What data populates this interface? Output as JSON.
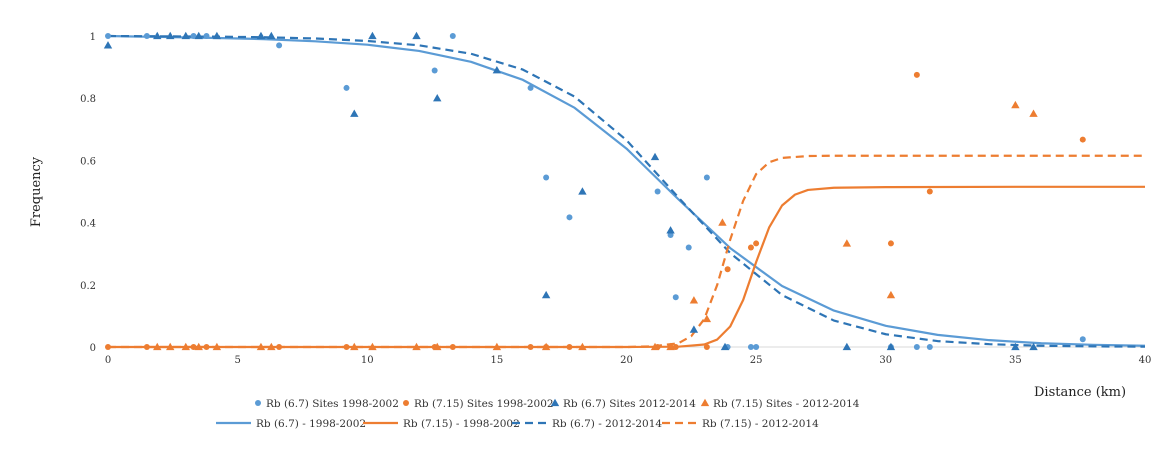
{
  "chart_data": {
    "type": "scatter",
    "xlabel": "Distance  (km)",
    "ylabel": "Frequency",
    "xlim": [
      0,
      40
    ],
    "ylim": [
      0,
      1
    ],
    "x_ticks": [
      0,
      5,
      10,
      15,
      20,
      25,
      30,
      35,
      40
    ],
    "y_ticks": [
      0,
      0.2,
      0.4,
      0.6,
      0.8,
      1
    ],
    "grid": false,
    "legend_position": "bottom",
    "colors": {
      "blue": "#5b9bd5",
      "blue_dark": "#2e75b6",
      "orange": "#ed7d31"
    },
    "series": [
      {
        "name": "Rb (6.7) Sites 1998-2002",
        "kind": "points",
        "marker": "circle",
        "color": "#5b9bd5",
        "x": [
          0,
          1.5,
          3.3,
          3.8,
          6.6,
          9.2,
          12.6,
          13.3,
          16.3,
          16.9,
          17.8,
          21.2,
          21.7,
          21.9,
          22.4,
          23.1,
          23.9,
          24.8,
          25.0,
          30.2,
          31.2,
          31.7,
          37.6
        ],
        "y": [
          1.0,
          1.0,
          1.0,
          1.0,
          0.97,
          0.833,
          0.889,
          1.0,
          0.833,
          0.545,
          0.417,
          0.5,
          0.36,
          0.16,
          0.32,
          0.545,
          0.0,
          0.0,
          0.0,
          0.0,
          0.0,
          0.0,
          0.025
        ]
      },
      {
        "name": "Rb (7.15) Sites 1998-2002",
        "kind": "points",
        "marker": "circle",
        "color": "#ed7d31",
        "x": [
          0,
          1.5,
          3.3,
          3.8,
          6.6,
          9.2,
          12.6,
          13.3,
          16.3,
          16.9,
          17.8,
          21.2,
          21.7,
          21.9,
          23.1,
          23.9,
          24.8,
          25.0,
          30.2,
          31.2,
          31.7,
          37.6
        ],
        "y": [
          0,
          0,
          0,
          0,
          0,
          0,
          0,
          0,
          0,
          0,
          0,
          0,
          0,
          0,
          0,
          0.25,
          0.32,
          0.333,
          0.333,
          0.875,
          0.5,
          0.667
        ]
      },
      {
        "name": "Rb (6.7) Sites 2012-2014",
        "kind": "points",
        "marker": "triangle",
        "color": "#2e75b6",
        "x": [
          0,
          1.9,
          2.4,
          3.0,
          3.5,
          4.2,
          5.9,
          6.3,
          9.5,
          10.2,
          11.9,
          12.7,
          15.0,
          16.9,
          18.3,
          21.1,
          21.7,
          22.6,
          23.8,
          28.5,
          30.2,
          35.0,
          35.7
        ],
        "y": [
          0.97,
          1.0,
          1.0,
          1.0,
          1.0,
          1.0,
          1.0,
          1.0,
          0.75,
          1.0,
          1.0,
          0.8,
          0.89,
          0.167,
          0.5,
          0.611,
          0.375,
          0.056,
          0.0,
          0.0,
          0.0,
          0.0,
          0.0
        ]
      },
      {
        "name": "Rb (7.15) Sites - 2012-2014",
        "kind": "points",
        "marker": "triangle",
        "color": "#ed7d31",
        "x": [
          1.9,
          2.4,
          3.0,
          3.5,
          4.2,
          5.9,
          6.3,
          9.5,
          10.2,
          11.9,
          12.7,
          15.0,
          16.9,
          18.3,
          21.1,
          21.7,
          22.6,
          23.1,
          23.7,
          28.5,
          30.2,
          35.0,
          35.7
        ],
        "y": [
          0,
          0,
          0,
          0,
          0,
          0,
          0,
          0,
          0,
          0,
          0,
          0,
          0,
          0,
          0,
          0,
          0.15,
          0.09,
          0.4,
          0.333,
          0.167,
          0.778,
          0.75
        ]
      },
      {
        "name": "Rb (6.7) - 1998-2002",
        "kind": "line",
        "dash": "solid",
        "color": "#5b9bd5",
        "x": [
          0,
          2,
          4,
          6,
          8,
          10,
          12,
          14,
          16,
          18,
          20,
          22,
          24,
          26,
          28,
          30,
          32,
          34,
          36,
          38,
          40
        ],
        "y": [
          1.0,
          0.997,
          0.994,
          0.99,
          0.983,
          0.972,
          0.952,
          0.917,
          0.859,
          0.769,
          0.638,
          0.475,
          0.318,
          0.196,
          0.117,
          0.068,
          0.039,
          0.022,
          0.012,
          0.007,
          0.004
        ]
      },
      {
        "name": "Rb (7.15) - 1998-2002",
        "kind": "line",
        "dash": "solid",
        "color": "#ed7d31",
        "x": [
          0,
          20,
          22,
          23,
          23.5,
          24,
          24.5,
          25,
          25.5,
          26,
          26.5,
          27,
          28,
          30,
          35,
          40
        ],
        "y": [
          0,
          0,
          0.001,
          0.008,
          0.024,
          0.066,
          0.151,
          0.273,
          0.384,
          0.455,
          0.49,
          0.505,
          0.512,
          0.514,
          0.515,
          0.515
        ]
      },
      {
        "name": "Rb (6.7) - 2012-2014",
        "kind": "line",
        "dash": "dashed",
        "color": "#2e75b6",
        "x": [
          0,
          2,
          4,
          6,
          8,
          10,
          12,
          14,
          16,
          18,
          20,
          22,
          24,
          26,
          28,
          30,
          32,
          34,
          36,
          38,
          40
        ],
        "y": [
          1.0,
          0.999,
          0.998,
          0.996,
          0.992,
          0.984,
          0.97,
          0.943,
          0.892,
          0.805,
          0.665,
          0.481,
          0.302,
          0.167,
          0.085,
          0.041,
          0.019,
          0.009,
          0.004,
          0.002,
          0.001
        ]
      },
      {
        "name": "Rb (7.15) - 2012-2014",
        "kind": "line",
        "dash": "dashed",
        "color": "#ed7d31",
        "x": [
          0,
          20,
          21,
          22,
          22.5,
          23,
          23.5,
          24,
          24.5,
          25,
          25.5,
          26,
          27,
          28,
          30,
          35,
          40
        ],
        "y": [
          0,
          0,
          0.002,
          0.012,
          0.035,
          0.09,
          0.2,
          0.345,
          0.47,
          0.556,
          0.594,
          0.608,
          0.614,
          0.615,
          0.615,
          0.615,
          0.615
        ]
      }
    ]
  }
}
